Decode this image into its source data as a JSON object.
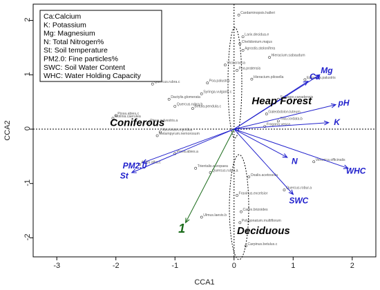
{
  "chart_data": {
    "type": "scatter",
    "title": "",
    "xlabel": "CCA1",
    "ylabel": "CCA2",
    "xlim": [
      -3.4,
      2.4
    ],
    "ylim": [
      -2.35,
      2.3
    ],
    "x_ticks": [
      -3,
      -2,
      -1,
      0,
      1,
      2
    ],
    "y_ticks": [
      -2,
      -1,
      0,
      1,
      2
    ],
    "reference_lines": {
      "x": 0,
      "y": 0,
      "style": "dotted"
    },
    "legend": {
      "position": "top-left",
      "entries": [
        "Ca:Calcium",
        "K:  Potassium",
        "Mg: Magnesium",
        "N: Total Nitrogen%",
        "St: Soil temperature",
        "PM2.0: Fine particles%",
        "SWC: Soil Water Content",
        "WHC: Water Holding Capacity"
      ]
    },
    "vectors": [
      {
        "label": "Mg",
        "x": 1.45,
        "y": 1.0,
        "color": "#1f1fcc"
      },
      {
        "label": "Ca",
        "x": 1.25,
        "y": 0.88,
        "color": "#1f1fcc"
      },
      {
        "label": "pH",
        "x": 1.72,
        "y": 0.45,
        "color": "#1f1fcc"
      },
      {
        "label": "K",
        "x": 1.6,
        "y": 0.12,
        "color": "#1f1fcc"
      },
      {
        "label": "WHC",
        "x": 1.93,
        "y": -0.72,
        "color": "#1f1fcc"
      },
      {
        "label": "N",
        "x": 0.9,
        "y": -0.52,
        "color": "#1f1fcc"
      },
      {
        "label": "SWC",
        "x": 1.0,
        "y": -1.2,
        "color": "#1f1fcc"
      },
      {
        "label": "PM2.0",
        "x": -1.55,
        "y": -0.62,
        "color": "#1f1fcc"
      },
      {
        "label": "St",
        "x": -1.73,
        "y": -0.8,
        "color": "#1f1fcc"
      },
      {
        "label": "1",
        "x": -0.82,
        "y": -1.72,
        "color": "#1a6b1a"
      }
    ],
    "regions": [
      {
        "label": "Heap Forest",
        "x": 0.3,
        "y": 0.46
      },
      {
        "label": "Coniferous",
        "x": -2.1,
        "y": 0.06
      },
      {
        "label": "Deciduous",
        "x": 0.05,
        "y": -1.93
      }
    ],
    "species": [
      {
        "name": "Cardaminopsis.halleri",
        "x": 0.08,
        "y": 2.1
      },
      {
        "name": "Larix.decidua.e",
        "x": 0.15,
        "y": 1.7
      },
      {
        "name": "Chelidonium.majus",
        "x": 0.1,
        "y": 1.57
      },
      {
        "name": "Agrostis.stolonifera",
        "x": 0.15,
        "y": 1.45
      },
      {
        "name": "Hieracium.sabaudum",
        "x": 0.6,
        "y": 1.32
      },
      {
        "name": "Poa.pratensis",
        "x": 0.05,
        "y": 1.08
      },
      {
        "name": "Viciacracca",
        "x": -0.15,
        "y": 1.18
      },
      {
        "name": "Hieracium.pilosella",
        "x": 0.3,
        "y": 0.92
      },
      {
        "name": "Solidago.canadensis",
        "x": 0.75,
        "y": 0.55
      },
      {
        "name": "Epipactis.palustris",
        "x": 1.2,
        "y": 0.91
      },
      {
        "name": "Quercus.rubra.c",
        "x": -1.38,
        "y": 0.83
      },
      {
        "name": "Syringa.vulgaris.c",
        "x": -0.55,
        "y": 0.65
      },
      {
        "name": "Poa.palustris",
        "x": -0.45,
        "y": 0.85
      },
      {
        "name": "Dactylis.glomerata",
        "x": -1.1,
        "y": 0.55
      },
      {
        "name": "Quercus.rubra.b",
        "x": -1.0,
        "y": 0.42
      },
      {
        "name": "Betula.pendula.c",
        "x": -0.7,
        "y": 0.38
      },
      {
        "name": "Picea.abies.c",
        "x": -2.0,
        "y": 0.25
      },
      {
        "name": "Molinia.caerulea",
        "x": -2.05,
        "y": 0.2
      },
      {
        "name": "Pinus.sylvestris.a",
        "x": -1.45,
        "y": 0.12
      },
      {
        "name": "Vaccinium.myrtillus",
        "x": -1.25,
        "y": -0.05
      },
      {
        "name": "Melampyrum.nemorosum",
        "x": -1.3,
        "y": -0.12
      },
      {
        "name": "Abies.alba.c",
        "x": -1.6,
        "y": -0.65
      },
      {
        "name": "Picea.abies.a",
        "x": -1.0,
        "y": -0.45
      },
      {
        "name": "Trientalis.europaea",
        "x": -0.65,
        "y": -0.72
      },
      {
        "name": "Quercus.rubra.a",
        "x": -0.4,
        "y": -0.8
      },
      {
        "name": "Ulmus.laevis.b",
        "x": -0.55,
        "y": -1.62
      },
      {
        "name": "Fraxinus.excelsior",
        "x": 0.05,
        "y": -1.22
      },
      {
        "name": "Carex.brizoides",
        "x": 0.12,
        "y": -1.52
      },
      {
        "name": "Polygonatum.multiflorum",
        "x": 0.1,
        "y": -1.72
      },
      {
        "name": "Carpinus.betulus.c",
        "x": 0.2,
        "y": -2.15
      },
      {
        "name": "Oxalis.acetosella",
        "x": 0.25,
        "y": -0.88
      },
      {
        "name": "Quercus.robur.a",
        "x": 0.85,
        "y": -1.12
      },
      {
        "name": "Veronica.officinalis",
        "x": 1.35,
        "y": -0.6
      },
      {
        "name": "Fragaria.vesca",
        "x": 0.52,
        "y": 0.05
      },
      {
        "name": "Galeobdolon.luteum",
        "x": 0.55,
        "y": 0.28
      },
      {
        "name": "Tilia.cordata.b",
        "x": 0.75,
        "y": 0.15
      }
    ]
  }
}
